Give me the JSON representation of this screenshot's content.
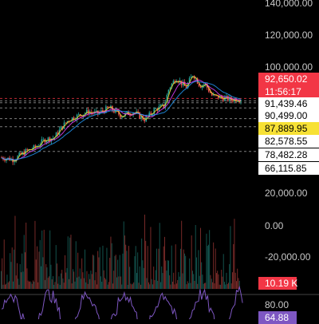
{
  "price_axis": {
    "labels": [
      "140,000.00",
      "120,000.00",
      "100,000.00"
    ],
    "levels": [
      140000,
      120000,
      100000
    ]
  },
  "price_tags": [
    {
      "value": "92,650.02",
      "style": "red"
    },
    {
      "value": "11:56:17",
      "style": "red"
    },
    {
      "value": "91,439.46",
      "style": "white"
    },
    {
      "value": "90,499.00",
      "style": "white"
    },
    {
      "value": "87,889.95",
      "style": "yellow"
    },
    {
      "value": "82,578.55",
      "style": "white"
    },
    {
      "value": "78,482.28",
      "style": "white"
    },
    {
      "value": "66,115.85",
      "style": "white"
    }
  ],
  "oscillator_axis": {
    "labels": [
      "20,000.00",
      "0.00",
      "-20,000.00"
    ],
    "levels": [
      20000,
      0,
      -20000
    ]
  },
  "oscillator_value_tag": {
    "value": "10.19 K",
    "style": "red"
  },
  "rsi_pane": {
    "labels": [
      "80.00"
    ],
    "value_tag": {
      "value": "64.88",
      "style": "purple"
    }
  },
  "colors": {
    "up": "#26a69a",
    "down": "#ef5350",
    "ma_fast": "#f7e135",
    "ma_mid": "#e040fb",
    "ma_slow": "#2196f3",
    "rsi_line": "#7e57c2",
    "dashed_level": "#9e9e9e",
    "current_price_line": "#f23645"
  },
  "chart_data": {
    "type": "candlestick",
    "price_path": [
      [
        0,
        63000
      ],
      [
        0.05,
        62000
      ],
      [
        0.1,
        66000
      ],
      [
        0.14,
        68000
      ],
      [
        0.18,
        72000
      ],
      [
        0.22,
        73000
      ],
      [
        0.25,
        78000
      ],
      [
        0.28,
        82000
      ],
      [
        0.32,
        84000
      ],
      [
        0.36,
        86000
      ],
      [
        0.4,
        85000
      ],
      [
        0.45,
        88000
      ],
      [
        0.5,
        84000
      ],
      [
        0.55,
        86000
      ],
      [
        0.6,
        82000
      ],
      [
        0.64,
        87000
      ],
      [
        0.68,
        89000
      ],
      [
        0.7,
        98000
      ],
      [
        0.73,
        103000
      ],
      [
        0.77,
        98000
      ],
      [
        0.8,
        105000
      ],
      [
        0.83,
        99000
      ],
      [
        0.85,
        100000
      ],
      [
        0.88,
        94000
      ],
      [
        0.92,
        93000
      ],
      [
        0.96,
        92000
      ],
      [
        1,
        92650
      ]
    ],
    "price_levels": [
      92650.02,
      91439.46,
      90499.0,
      87889.95,
      82578.55,
      78482.28,
      66115.85
    ],
    "current_price": 92650.02,
    "volume_value": "10.19 K",
    "rsi_overbought": 80,
    "rsi_value": 64.88
  }
}
